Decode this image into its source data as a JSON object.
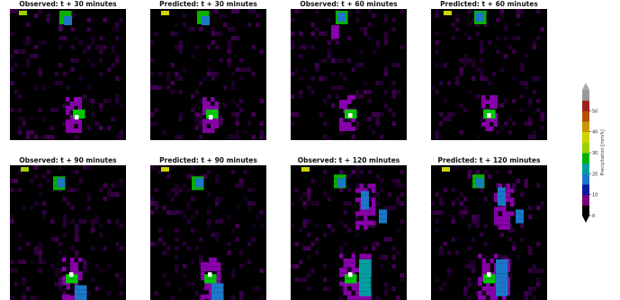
{
  "figure": {
    "panels": [
      {
        "title": "Observed: t + 30 minutes"
      },
      {
        "title": "Predicted: t + 30 minutes"
      },
      {
        "title": "Observed: t + 60 minutes"
      },
      {
        "title": "Predicted: t + 60 minutes"
      },
      {
        "title": "Observed: t + 90 minutes"
      },
      {
        "title": "Predicted: t + 90 minutes"
      },
      {
        "title": "Observed: t + 120 minutes"
      },
      {
        "title": "Predicted: t + 120 minutes"
      }
    ]
  },
  "chart_data": {
    "type": "heatmap",
    "colorbar": {
      "label": "Precipitation [mm/h]",
      "ticks": [
        0,
        10,
        20,
        30,
        40,
        50
      ],
      "range": [
        0,
        60
      ],
      "extend": "both",
      "colors": [
        "#000000",
        "#7a007a",
        "#0a1aa0",
        "#1a78c8",
        "#00a0a0",
        "#00b400",
        "#9bd200",
        "#d2d200",
        "#c89600",
        "#b45000",
        "#a01e1e",
        "#999999"
      ]
    }
  }
}
